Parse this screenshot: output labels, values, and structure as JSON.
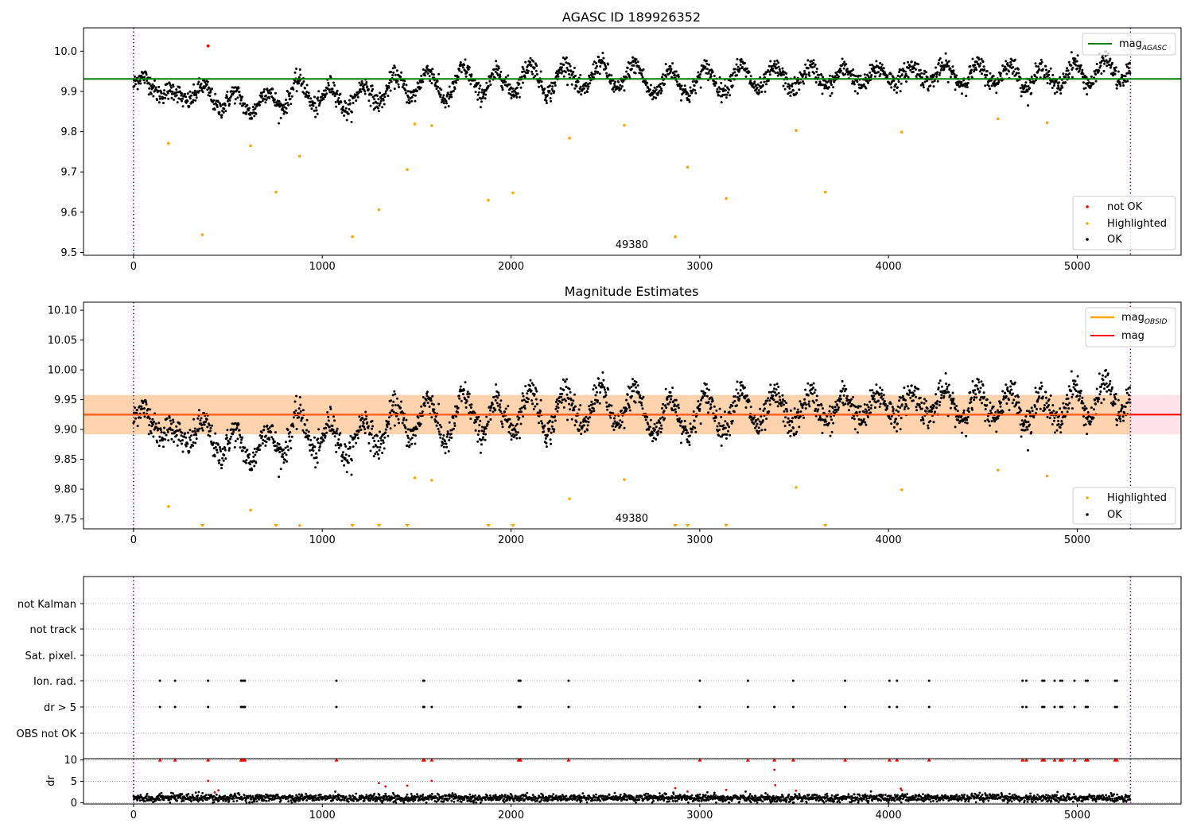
{
  "chart_data": [
    {
      "type": "scatter",
      "title": "AGASC ID 189926352",
      "xlim": [
        -265,
        5550
      ],
      "ylim": [
        9.493,
        10.058
      ],
      "x_ticks": [
        0,
        1000,
        2000,
        3000,
        4000,
        5000,
        6000
      ],
      "y_ticks": [
        9.5,
        9.6,
        9.7,
        9.8,
        9.9,
        10.0
      ],
      "y_tick_labels": [
        "9.5",
        "9.6",
        "9.7",
        "9.8",
        "9.9",
        "10.0"
      ],
      "vlines": [
        0,
        5282
      ],
      "obsid_label": {
        "text": "49380",
        "x": 2640
      },
      "mag_agasc": {
        "name": "mag",
        "sub": "AGASC",
        "value": 9.931,
        "x_end": 5550,
        "color": "#008000"
      },
      "legend_lines": [
        {
          "label": "mag",
          "sub": "AGASC",
          "color": "#008000"
        }
      ],
      "legend_points": [
        {
          "label": "not OK",
          "color": "#ff0000"
        },
        {
          "label": "Highlighted",
          "color": "#ffa500"
        },
        {
          "label": "OK",
          "color": "#000000"
        }
      ],
      "not_ok": [
        {
          "x": 395,
          "y": 10.013
        }
      ],
      "highlighted": [
        {
          "x": 185,
          "y": 9.771
        },
        {
          "x": 365,
          "y": 9.544
        },
        {
          "x": 620,
          "y": 9.765
        },
        {
          "x": 755,
          "y": 9.65
        },
        {
          "x": 880,
          "y": 9.739
        },
        {
          "x": 1160,
          "y": 9.539
        },
        {
          "x": 1300,
          "y": 9.606
        },
        {
          "x": 1450,
          "y": 9.706
        },
        {
          "x": 1490,
          "y": 9.819
        },
        {
          "x": 1580,
          "y": 9.815
        },
        {
          "x": 1880,
          "y": 9.63
        },
        {
          "x": 2010,
          "y": 9.648
        },
        {
          "x": 2310,
          "y": 9.784
        },
        {
          "x": 2600,
          "y": 9.816
        },
        {
          "x": 2870,
          "y": 9.539
        },
        {
          "x": 2935,
          "y": 9.712
        },
        {
          "x": 3140,
          "y": 9.634
        },
        {
          "x": 3510,
          "y": 9.803
        },
        {
          "x": 3665,
          "y": 9.65
        },
        {
          "x": 4070,
          "y": 9.799
        },
        {
          "x": 4580,
          "y": 9.832
        },
        {
          "x": 4840,
          "y": 9.822
        }
      ],
      "ok_profile": {
        "x_range": [
          0,
          5282
        ],
        "mean": [
          {
            "x": 0,
            "y": 9.915
          },
          {
            "x": 100,
            "y": 9.925
          },
          {
            "x": 200,
            "y": 9.882
          },
          {
            "x": 300,
            "y": 9.898
          },
          {
            "x": 400,
            "y": 9.888
          },
          {
            "x": 500,
            "y": 9.875
          },
          {
            "x": 600,
            "y": 9.87
          },
          {
            "x": 700,
            "y": 9.873
          },
          {
            "x": 800,
            "y": 9.888
          },
          {
            "x": 900,
            "y": 9.903
          },
          {
            "x": 1000,
            "y": 9.882
          },
          {
            "x": 1100,
            "y": 9.885
          },
          {
            "x": 1200,
            "y": 9.88
          },
          {
            "x": 1300,
            "y": 9.905
          },
          {
            "x": 1400,
            "y": 9.905
          },
          {
            "x": 1500,
            "y": 9.925
          },
          {
            "x": 1600,
            "y": 9.915
          },
          {
            "x": 1700,
            "y": 9.91
          },
          {
            "x": 1800,
            "y": 9.94
          },
          {
            "x": 1900,
            "y": 9.905
          },
          {
            "x": 2000,
            "y": 9.935
          },
          {
            "x": 2200,
            "y": 9.93
          },
          {
            "x": 2400,
            "y": 9.935
          },
          {
            "x": 2600,
            "y": 9.94
          },
          {
            "x": 2800,
            "y": 9.92
          },
          {
            "x": 3000,
            "y": 9.925
          },
          {
            "x": 3200,
            "y": 9.935
          },
          {
            "x": 3400,
            "y": 9.93
          },
          {
            "x": 3600,
            "y": 9.935
          },
          {
            "x": 3800,
            "y": 9.935
          },
          {
            "x": 4000,
            "y": 9.94
          },
          {
            "x": 4200,
            "y": 9.945
          },
          {
            "x": 4400,
            "y": 9.94
          },
          {
            "x": 4600,
            "y": 9.945
          },
          {
            "x": 4800,
            "y": 9.93
          },
          {
            "x": 5000,
            "y": 9.945
          },
          {
            "x": 5282,
            "y": 9.955
          }
        ],
        "oscillation_amplitude": 0.035,
        "oscillation_period": 175,
        "scatter": 0.012
      }
    },
    {
      "type": "scatter",
      "title": "Magnitude Estimates",
      "xlim": [
        -265,
        5550
      ],
      "ylim": [
        9.7335,
        10.1135
      ],
      "x_ticks": [
        0,
        1000,
        2000,
        3000,
        4000,
        5000,
        6000
      ],
      "y_ticks": [
        9.75,
        9.8,
        9.85,
        9.9,
        9.95,
        10.0,
        10.05,
        10.1
      ],
      "y_tick_labels": [
        "9.75",
        "9.80",
        "9.85",
        "9.90",
        "9.95",
        "10.00",
        "10.05",
        "10.10"
      ],
      "vlines": [
        0,
        5282
      ],
      "obsid_label": {
        "text": "49380",
        "x": 2640
      },
      "mag_obsid": {
        "name": "mag",
        "sub": "OBSID",
        "value": 9.925,
        "color": "#ffa500"
      },
      "mag": {
        "name": "mag",
        "value": 9.925,
        "x_end": 5550,
        "color": "#ff0000"
      },
      "band_red": {
        "low": 9.892,
        "high": 9.958,
        "color": "#ffc0cb"
      },
      "band_orange": {
        "low": 9.892,
        "high": 9.958,
        "x_end": 5282,
        "color": "#ffa500"
      },
      "legend_lines": [
        {
          "label": "mag",
          "sub": "OBSID",
          "color": "#ffa500"
        },
        {
          "label": "mag",
          "sub": "",
          "color": "#ff0000"
        }
      ],
      "legend_points": [
        {
          "label": "Highlighted",
          "color": "#ffa500"
        },
        {
          "label": "OK",
          "color": "#000000"
        }
      ],
      "highlighted": [
        {
          "x": 185,
          "y": 9.771
        },
        {
          "x": 620,
          "y": 9.765
        },
        {
          "x": 1490,
          "y": 9.819
        },
        {
          "x": 1580,
          "y": 9.815
        },
        {
          "x": 2310,
          "y": 9.784
        },
        {
          "x": 2600,
          "y": 9.816
        },
        {
          "x": 3510,
          "y": 9.803
        },
        {
          "x": 4070,
          "y": 9.799
        },
        {
          "x": 4580,
          "y": 9.832
        },
        {
          "x": 4840,
          "y": 9.822
        },
        {
          "x": 880,
          "y": 9.739
        }
      ],
      "off_scale_low": [
        365,
        755,
        1160,
        1300,
        1450,
        1880,
        2010,
        2870,
        2935,
        3140,
        3665
      ]
    },
    {
      "type": "scatter",
      "title": "",
      "xlim": [
        -265,
        5550
      ],
      "flag_labels": [
        "not Kalman",
        "not track",
        "Sat. pixel.",
        "Ion. rad.",
        "dr > 5",
        "OBS not OK"
      ],
      "flags": {
        "Ion. rad.": [
          140,
          220,
          395,
          570,
          575,
          585,
          590,
          1075,
          1535,
          1540,
          2040,
          2045,
          2050,
          2305,
          3000,
          3255,
          3495,
          3770,
          4005,
          4045,
          4215,
          4710,
          4730,
          4815,
          4825,
          4880,
          4910,
          4920,
          4985,
          5045,
          5055,
          5200,
          5210
        ],
        "dr > 5": [
          140,
          220,
          395,
          570,
          575,
          585,
          590,
          1075,
          1535,
          1540,
          1580,
          2040,
          2045,
          2050,
          2305,
          3000,
          3255,
          3395,
          3495,
          3770,
          4005,
          4045,
          4215,
          4710,
          4730,
          4815,
          4825,
          4880,
          4910,
          4920,
          4985,
          5045,
          5055,
          5200,
          5210
        ]
      },
      "dr": {
        "ylabel": "dr",
        "ylim": [
          -0.3,
          10.3
        ],
        "y_ticks": [
          0,
          5,
          10
        ],
        "y_tick_labels": [
          "0",
          "5",
          "10"
        ],
        "baseline_mean": 1.1,
        "capped_value": 10,
        "extra_red": [
          {
            "x": 395,
            "y": 5.1
          },
          {
            "x": 430,
            "y": 2.4
          },
          {
            "x": 450,
            "y": 2.9
          },
          {
            "x": 1300,
            "y": 4.6
          },
          {
            "x": 1335,
            "y": 3.8
          },
          {
            "x": 1450,
            "y": 4.0
          },
          {
            "x": 1580,
            "y": 5.1
          },
          {
            "x": 2870,
            "y": 3.4
          },
          {
            "x": 2935,
            "y": 2.6
          },
          {
            "x": 3140,
            "y": 3.0
          },
          {
            "x": 3395,
            "y": 7.7
          },
          {
            "x": 3400,
            "y": 4.1
          },
          {
            "x": 3510,
            "y": 2.8
          },
          {
            "x": 4065,
            "y": 3.3
          },
          {
            "x": 4070,
            "y": 2.9
          }
        ]
      },
      "x_ticks": [
        0,
        1000,
        2000,
        3000,
        4000,
        5000,
        6000
      ]
    }
  ]
}
